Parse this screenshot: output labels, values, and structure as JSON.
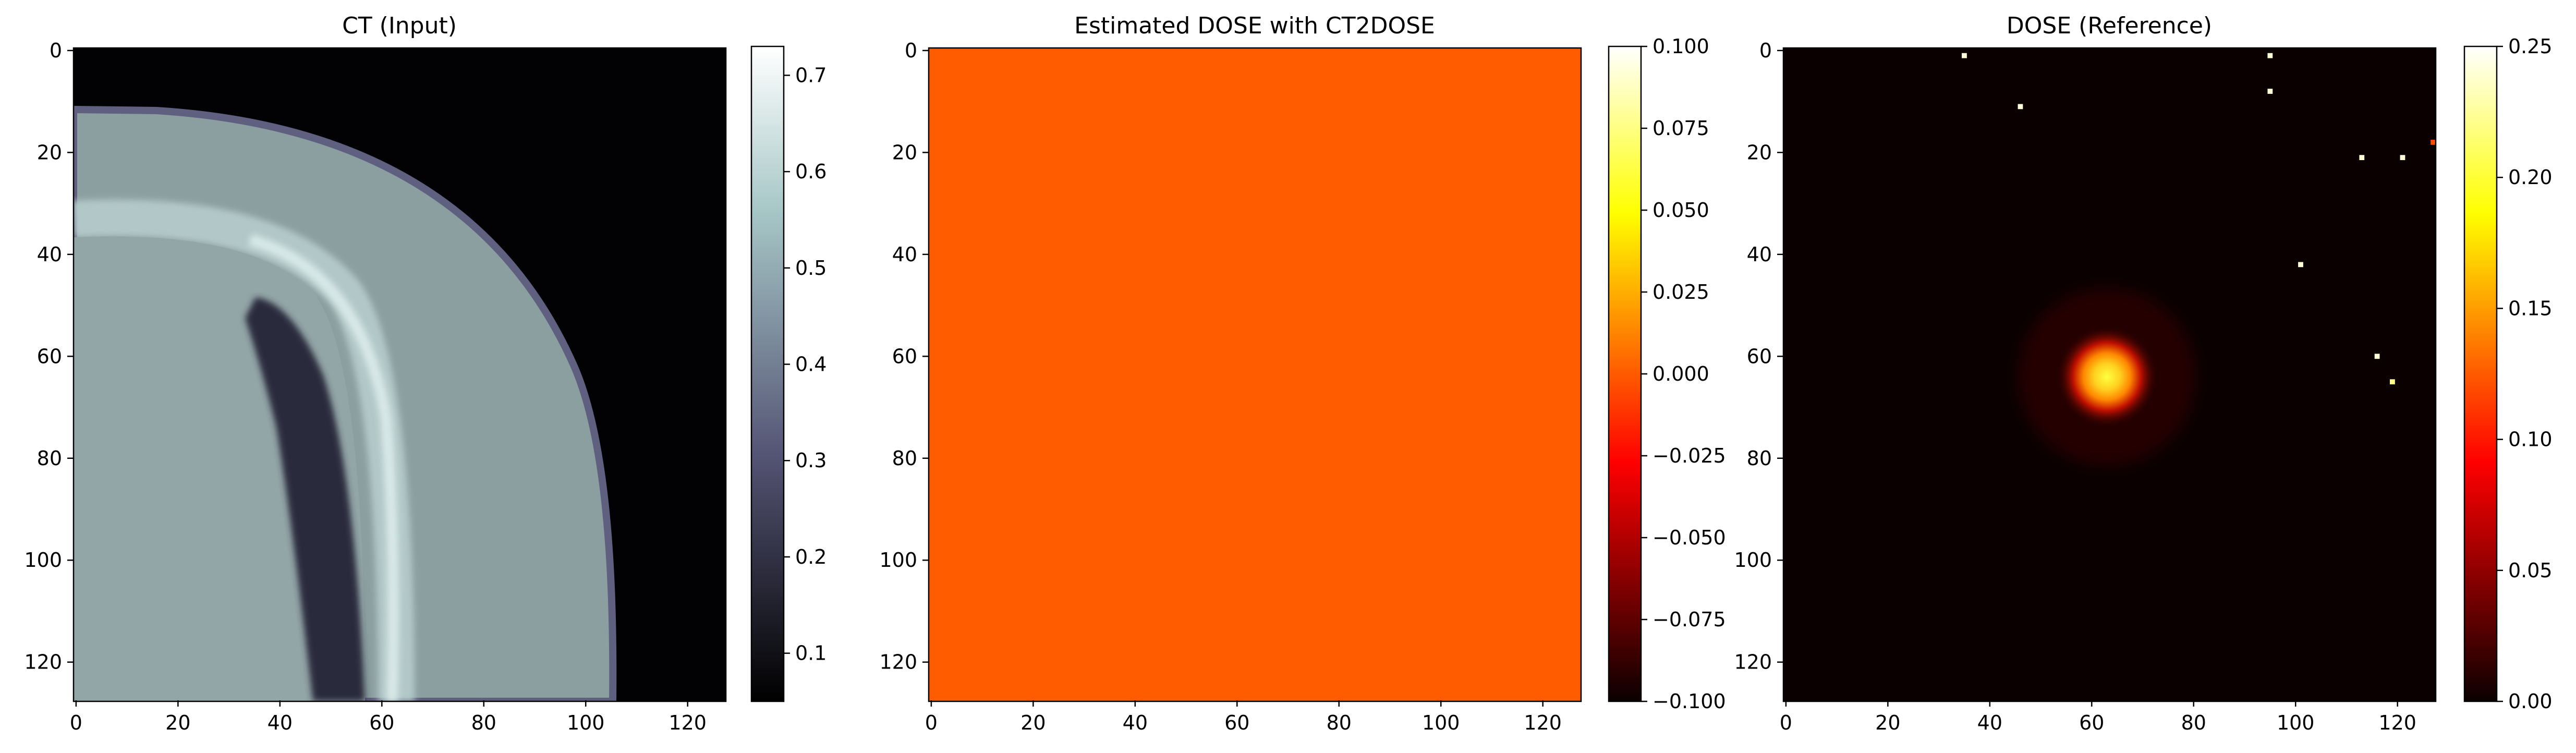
{
  "chart_data": [
    {
      "type": "heatmap",
      "title": "CT (Input)",
      "xlabel": "",
      "ylabel": "",
      "xlim": [
        0,
        127
      ],
      "ylim": [
        127,
        0
      ],
      "x_ticks": [
        "0",
        "20",
        "40",
        "60",
        "80",
        "100",
        "120"
      ],
      "y_ticks": [
        "0",
        "20",
        "40",
        "60",
        "80",
        "100",
        "120"
      ],
      "colorbar": {
        "colormap": "bone",
        "range": [
          0.05,
          0.73
        ],
        "ticks": [
          "0.1",
          "0.2",
          "0.3",
          "0.4",
          "0.5",
          "0.6",
          "0.7"
        ]
      },
      "description_values": {
        "background": 0.05,
        "outer_tissue": 0.48,
        "bone_edge_max": 0.73,
        "inner_tissue": 0.52,
        "air_cavity": 0.12
      }
    },
    {
      "type": "heatmap",
      "title": "Estimated DOSE with CT2DOSE",
      "xlabel": "",
      "ylabel": "",
      "xlim": [
        0,
        127
      ],
      "ylim": [
        127,
        0
      ],
      "x_ticks": [
        "0",
        "20",
        "40",
        "60",
        "80",
        "100",
        "120"
      ],
      "y_ticks": [
        "0",
        "20",
        "40",
        "60",
        "80",
        "100",
        "120"
      ],
      "uniform_value": 0.0,
      "colorbar": {
        "colormap": "hot",
        "range": [
          -0.1,
          0.1
        ],
        "ticks": [
          "0.100",
          "0.075",
          "0.050",
          "0.025",
          "0.000",
          "−0.025",
          "−0.050",
          "−0.075",
          "−0.100"
        ]
      }
    },
    {
      "type": "heatmap",
      "title": "DOSE (Reference)",
      "xlabel": "",
      "ylabel": "",
      "xlim": [
        0,
        127
      ],
      "ylim": [
        127,
        0
      ],
      "x_ticks": [
        "0",
        "20",
        "40",
        "60",
        "80",
        "100",
        "120"
      ],
      "y_ticks": [
        "0",
        "20",
        "40",
        "60",
        "80",
        "100",
        "120"
      ],
      "background_value": 0.01,
      "hotspot": {
        "center_x": 63,
        "center_y": 64,
        "peak_value": 0.24
      },
      "sparse_points": [
        {
          "x": 35,
          "y": 1,
          "value": 0.24
        },
        {
          "x": 95,
          "y": 1,
          "value": 0.24
        },
        {
          "x": 95,
          "y": 8,
          "value": 0.24
        },
        {
          "x": 46,
          "y": 11,
          "value": 0.24
        },
        {
          "x": 113,
          "y": 21,
          "value": 0.24
        },
        {
          "x": 121,
          "y": 21,
          "value": 0.24
        },
        {
          "x": 127,
          "y": 18,
          "value": 0.12
        },
        {
          "x": 101,
          "y": 42,
          "value": 0.24
        },
        {
          "x": 116,
          "y": 60,
          "value": 0.24
        },
        {
          "x": 119,
          "y": 65,
          "value": 0.22
        }
      ],
      "colorbar": {
        "colormap": "hot",
        "range": [
          0.0,
          0.25
        ],
        "ticks": [
          "0.25",
          "0.20",
          "0.15",
          "0.10",
          "0.05",
          "0.00"
        ]
      }
    }
  ]
}
